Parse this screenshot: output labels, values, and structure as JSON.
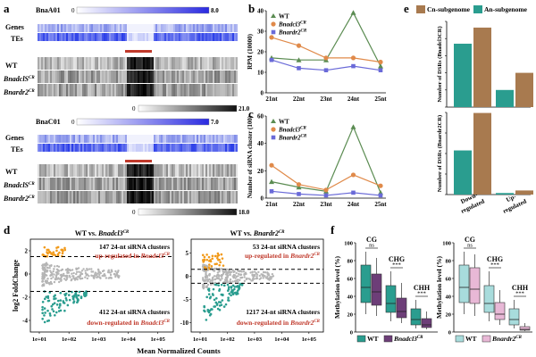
{
  "panel_a": {
    "label": "a",
    "top": {
      "chrom": "BnaA01",
      "scale_min": "0",
      "scale_max": "8.0",
      "row_genes": "Genes",
      "row_tes": "TEs",
      "tracks": [
        "WT",
        "BnadclS",
        "Bnardr2"
      ],
      "track_sup": "CR",
      "gray_min": "0",
      "gray_max": "21.0"
    },
    "bottom": {
      "chrom": "BnaC01",
      "scale_min": "0",
      "scale_max": "7.0",
      "row_genes": "Genes",
      "row_tes": "TEs",
      "tracks": [
        "WT",
        "BnadclS",
        "Bnardr2"
      ],
      "track_sup": "CR",
      "gray_min": "0",
      "gray_max": "18.0"
    }
  },
  "chart_data": [
    {
      "id": "b",
      "type": "line",
      "categories": [
        "21nt",
        "22nt",
        "23nt",
        "24nt",
        "25nt"
      ],
      "ylabel": "RPM (10000)",
      "ylim": [
        0,
        40
      ],
      "yticks": [
        0,
        10,
        20,
        30,
        40
      ],
      "series": [
        {
          "name": "WT",
          "values": [
            17,
            16,
            16,
            39,
            13
          ]
        },
        {
          "name": "Bnadcl3CR",
          "values": [
            27,
            23,
            17,
            17,
            15
          ]
        },
        {
          "name": "Bnardr2CR",
          "values": [
            16,
            12,
            11,
            13,
            11
          ]
        }
      ]
    },
    {
      "id": "c",
      "type": "line",
      "categories": [
        "21nt",
        "22nt",
        "23nt",
        "24nt",
        "25nt"
      ],
      "ylabel": "Number of siRNA cluster (100)",
      "ylim": [
        0,
        60
      ],
      "yticks": [
        0,
        20,
        40,
        60
      ],
      "series": [
        {
          "name": "WT",
          "values": [
            12,
            8,
            5,
            52,
            4
          ]
        },
        {
          "name": "Bnadcl3CR",
          "values": [
            24,
            10,
            6,
            17,
            9
          ]
        },
        {
          "name": "Bnardr2CR",
          "values": [
            5,
            3,
            2,
            4,
            2
          ]
        }
      ]
    },
    {
      "id": "e",
      "type": "bar",
      "categories": [
        "Down-regulated",
        "Up-regulated"
      ],
      "legend": [
        "Cn-subgenome",
        "An-subgenome"
      ],
      "upper": {
        "ylabel": "Number of DSRs (Bnadcl3CR)",
        "ylim": [
          0,
          250
        ],
        "yticks": [
          0,
          50,
          100,
          150,
          200,
          250
        ],
        "series": [
          {
            "name": "An-subgenome",
            "values": [
              185,
              50
            ]
          },
          {
            "name": "Cn-subgenome",
            "values": [
              232,
              100
            ]
          }
        ]
      },
      "lower": {
        "ylabel": "Number of DSRs (Bnardr2CR)",
        "ylim": [
          0,
          800
        ],
        "yticks": [
          0,
          200,
          400,
          600,
          800
        ],
        "series": [
          {
            "name": "An-subgenome",
            "values": [
              430,
              15
            ]
          },
          {
            "name": "Cn-subgenome",
            "values": [
              795,
              40
            ]
          }
        ]
      }
    },
    {
      "id": "d",
      "type": "scatter",
      "ylabel": "log2 FoldChange",
      "xlabel": "Mean Normalized Counts",
      "xticks": [
        "1e+01",
        "1e+02",
        "1e+03",
        "1e+04",
        "1e+05"
      ],
      "left": {
        "title": "WT vs. Bnadcl3CR",
        "yticks": [
          -4,
          -2,
          0,
          2
        ],
        "up_count": "147 24-nt siRNA clusters",
        "up_text": "up-regulated in Bnadcl3CR",
        "down_count": "412 24-nt siRNA clusters",
        "down_text": "down-regulated in Bnadcl3CR"
      },
      "right": {
        "title": "WT vs. Bnardr2CR",
        "yticks": [
          -10,
          -5,
          0,
          5
        ],
        "up_count": "53 24-nt siRNA clusters",
        "up_text": "up-regulated in Bnardr2CR",
        "down_count": "1217 24-nt siRNA clusters",
        "down_text": "down-regulated in Bnardr2CR"
      }
    },
    {
      "id": "f",
      "type": "box",
      "ylabel": "Methylation level (%)",
      "ylim": [
        0,
        100
      ],
      "yticks": [
        0,
        20,
        40,
        60,
        80,
        100
      ],
      "contexts": [
        "CG",
        "CHG",
        "CHH"
      ],
      "left": {
        "legend": [
          "WT",
          "Bnadcl3CR"
        ],
        "sig": [
          "ns",
          "***",
          "***"
        ],
        "boxes": [
          [
            20,
            33,
            50,
            75,
            90
          ],
          [
            18,
            30,
            45,
            65,
            83
          ],
          [
            12,
            22,
            32,
            52,
            68
          ],
          [
            10,
            16,
            23,
            38,
            55
          ],
          [
            4,
            8,
            14,
            26,
            36
          ],
          [
            3,
            5,
            8,
            15,
            23
          ]
        ]
      },
      "right": {
        "legend": [
          "WT",
          "Bnardr2CR"
        ],
        "sig": [
          "ns",
          "***",
          "***"
        ],
        "boxes": [
          [
            20,
            33,
            50,
            75,
            90
          ],
          [
            18,
            32,
            48,
            72,
            87
          ],
          [
            12,
            22,
            32,
            52,
            68
          ],
          [
            8,
            14,
            20,
            33,
            47
          ],
          [
            4,
            8,
            14,
            26,
            36
          ],
          [
            1,
            2,
            3,
            6,
            10
          ]
        ]
      }
    }
  ],
  "colors": {
    "wt": "#5b8c52",
    "dcl": "#e08a4a",
    "rdr": "#6a6ad8",
    "brown": "#a87a4f",
    "teal": "#2a9d8f",
    "teal_box": "#2a9d8f",
    "purple_box": "#6d3e78",
    "light_teal": "#a8dcdc",
    "light_pink": "#e8b8d6",
    "orange": "#f29a1a",
    "gray": "#b5b5b5",
    "red": "#c0392b"
  }
}
